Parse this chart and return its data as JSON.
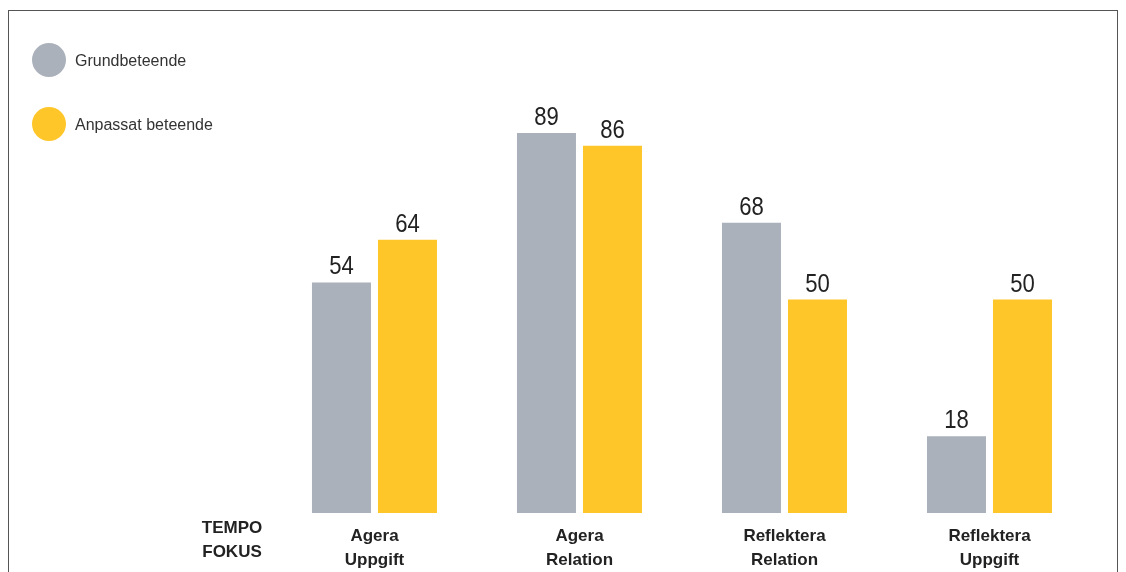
{
  "chart_data": {
    "type": "bar",
    "annotations": [
      "TEMPO\nFOKUS"
    ],
    "categories": [
      "Agera\nUppgift",
      "Agera\nRelation",
      "Reflektera\nRelation",
      "Reflektera\nUppgift"
    ],
    "series": [
      {
        "name": "Grundbeteende",
        "color": "#aab1bb",
        "values": [
          54,
          89,
          68,
          18
        ]
      },
      {
        "name": "Anpassat beteende",
        "color": "#ffc629",
        "values": [
          64,
          86,
          50,
          50
        ]
      }
    ],
    "data_labels": true,
    "legend": "top left",
    "grid": false
  }
}
